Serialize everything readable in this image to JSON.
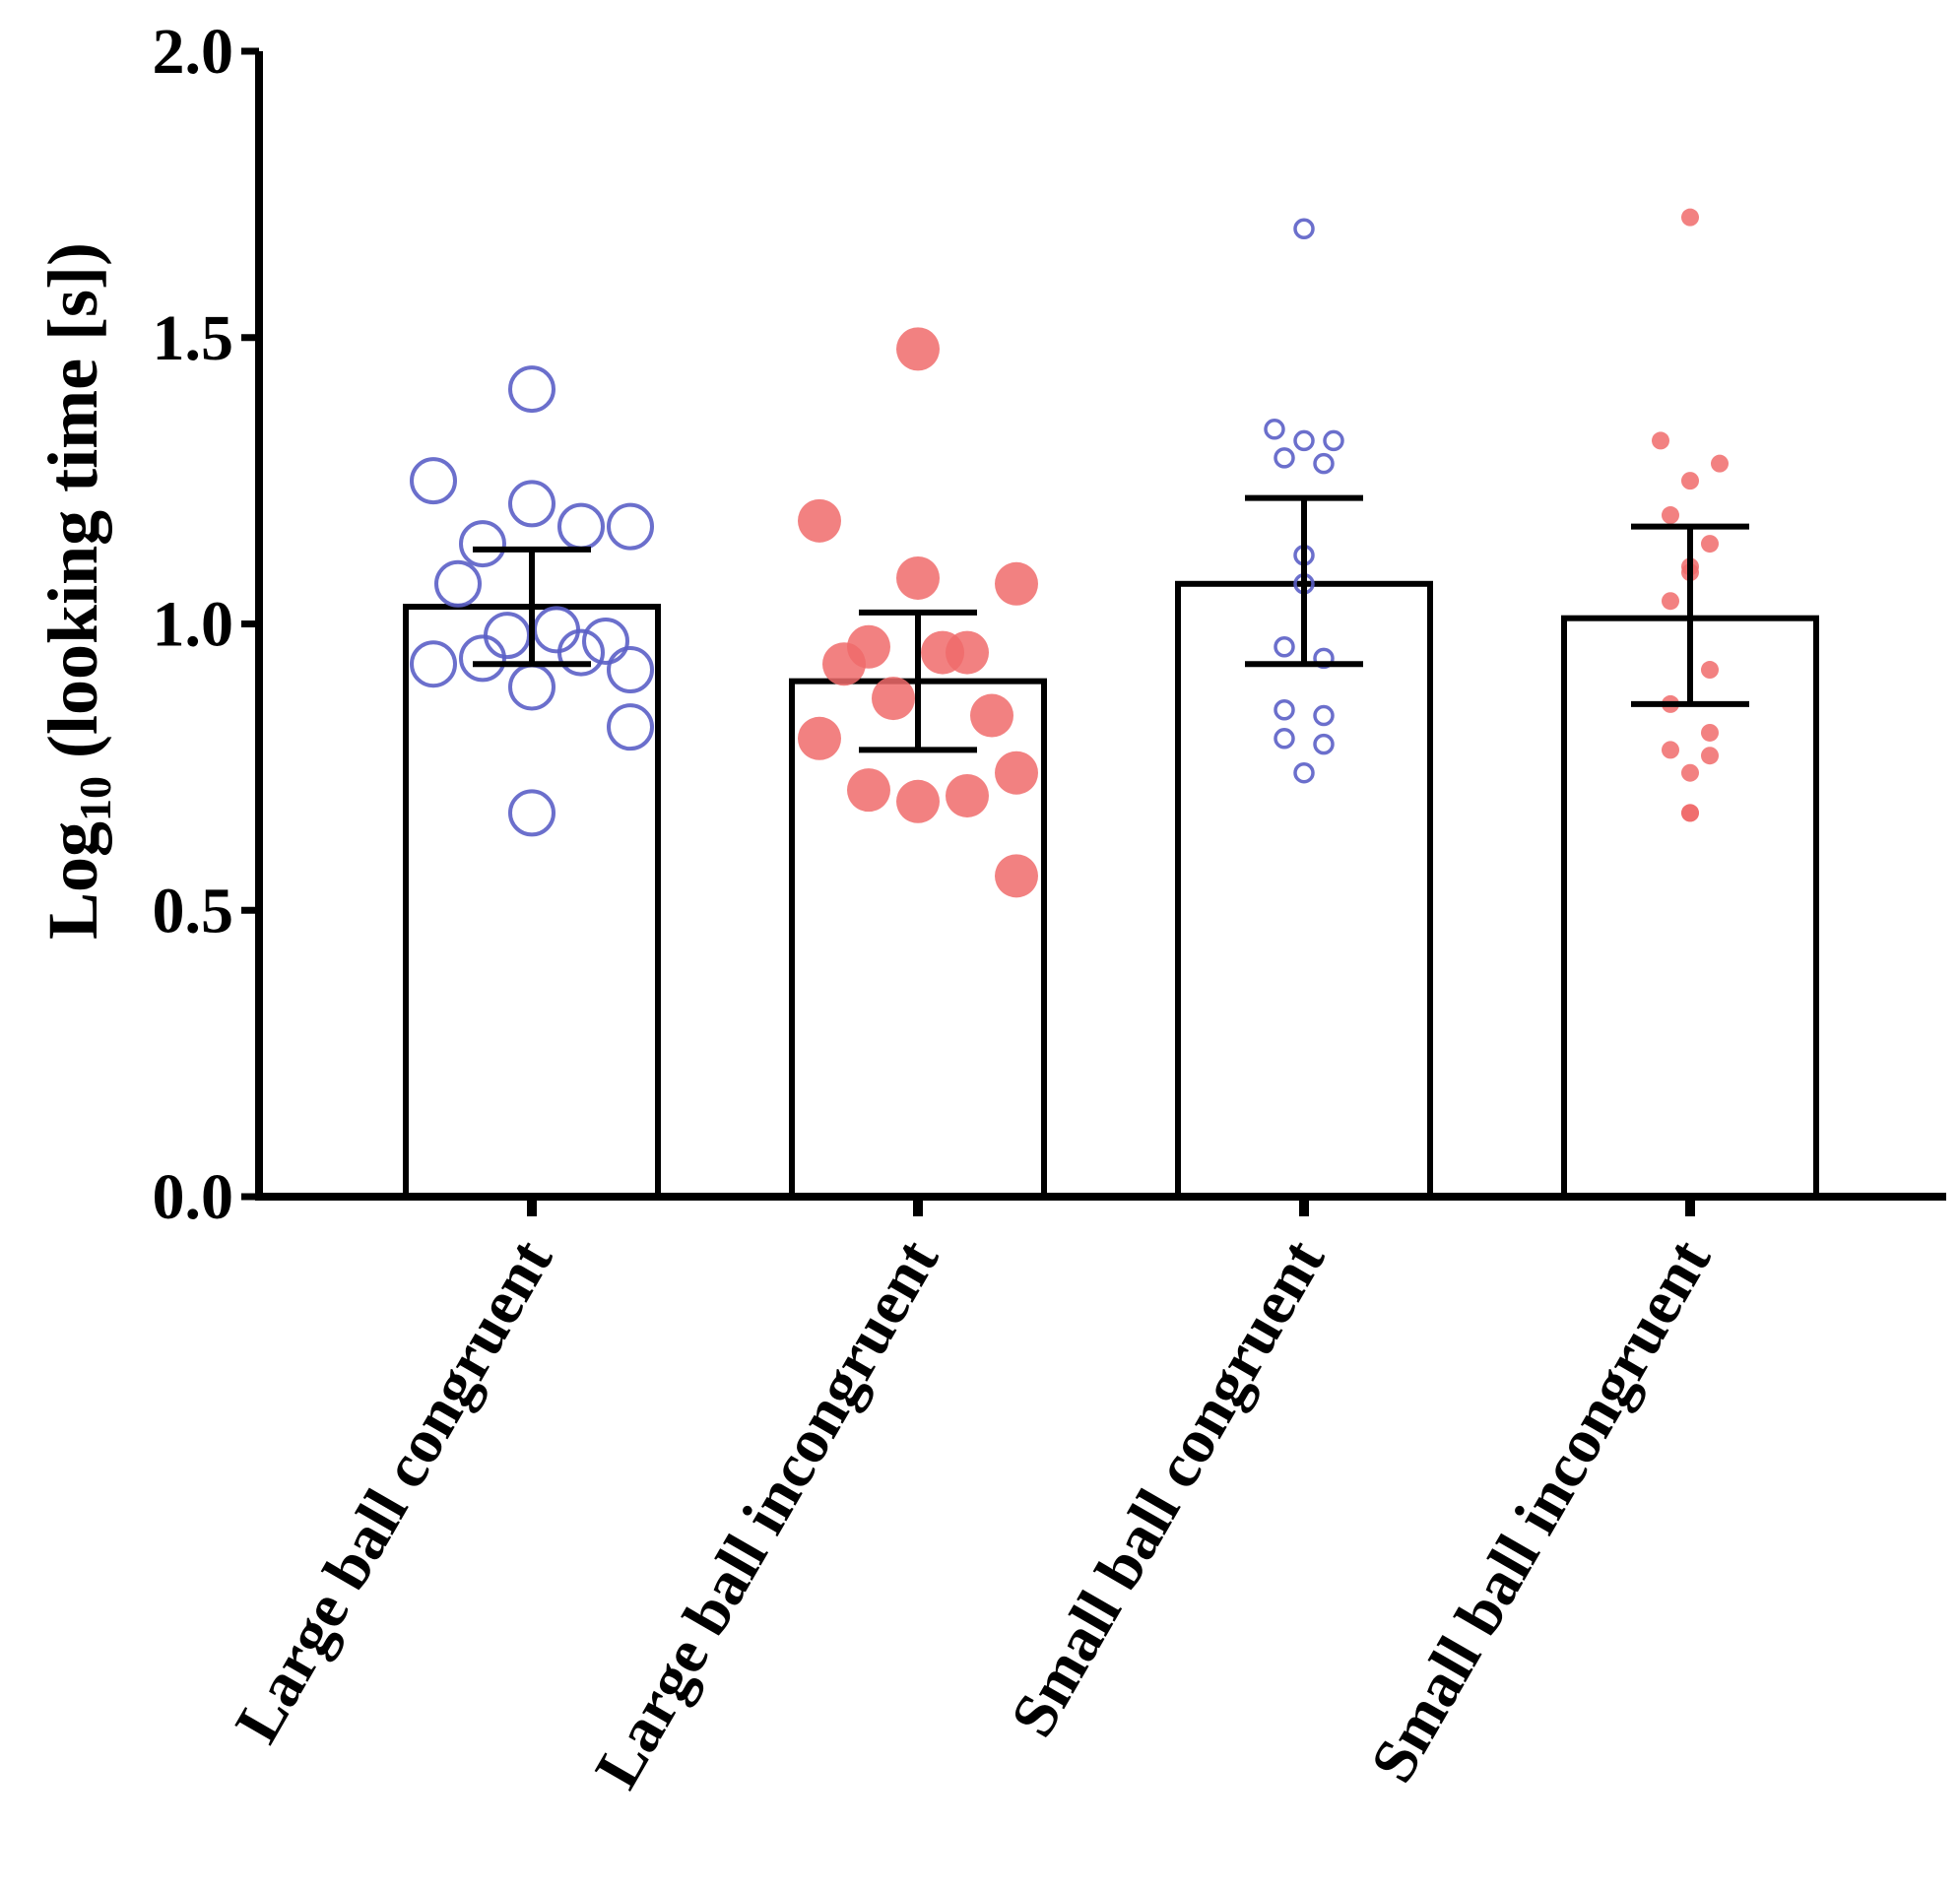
{
  "chart_data": {
    "type": "bar",
    "ylabel": {
      "base": "Log",
      "subscript": "10",
      "rest": " (looking time [s])"
    },
    "ylim": [
      0,
      2.0
    ],
    "yticks": [
      0.0,
      0.5,
      1.0,
      1.5,
      2.0
    ],
    "ytick_labels": [
      "0.0",
      "0.5",
      "1.0",
      "1.5",
      "2.0"
    ],
    "categories": [
      "Large ball congruent",
      "Large ball incongruent",
      "Small ball congruent",
      "Small ball incongruent"
    ],
    "bars": [
      {
        "name": "Large ball congruent",
        "mean": 1.03,
        "error_low": 0.93,
        "error_high": 1.13,
        "marker": "open-circle-large",
        "color": "#5b5fc7",
        "points": [
          1.41,
          1.25,
          1.21,
          1.17,
          1.14,
          1.17,
          1.07,
          0.99,
          0.98,
          0.97,
          0.93,
          0.92,
          0.94,
          0.95,
          0.89,
          0.82,
          0.67
        ]
      },
      {
        "name": "Large ball incongruent",
        "mean": 0.9,
        "error_low": 0.78,
        "error_high": 1.02,
        "marker": "filled-circle-large",
        "color": "#f06b6b",
        "points": [
          1.48,
          1.18,
          1.08,
          1.07,
          0.96,
          0.95,
          0.93,
          0.95,
          0.87,
          0.84,
          0.8,
          0.74,
          0.71,
          0.7,
          0.69,
          0.56
        ]
      },
      {
        "name": "Small ball congruent",
        "mean": 1.07,
        "error_low": 0.93,
        "error_high": 1.22,
        "marker": "open-circle-small",
        "color": "#5b5fc7",
        "points": [
          1.69,
          1.34,
          1.32,
          1.32,
          1.29,
          1.28,
          1.12,
          1.07,
          0.96,
          0.94,
          0.85,
          0.84,
          0.8,
          0.79,
          0.74
        ]
      },
      {
        "name": "Small ball incongruent",
        "mean": 1.01,
        "error_low": 0.86,
        "error_high": 1.17,
        "marker": "filled-circle-small",
        "color": "#f06b6b",
        "points": [
          1.71,
          1.32,
          1.28,
          1.25,
          1.19,
          1.14,
          1.1,
          1.09,
          1.04,
          0.92,
          0.86,
          0.81,
          0.78,
          0.77,
          0.74,
          0.67,
          0.67
        ]
      }
    ]
  }
}
